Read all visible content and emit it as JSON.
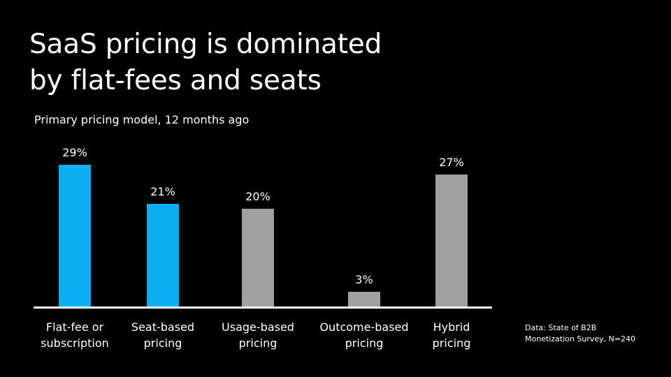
{
  "title_lines": [
    "SaaS pricing is dominated",
    "by flat-fees and seats"
  ],
  "subtitle": "Primary pricing model, 12 months ago",
  "source_lines": [
    "Data: State of B2B",
    "Monetization Survey, N=240"
  ],
  "colors": {
    "background": "#000000",
    "highlight": "#0aaef2",
    "muted": "#a0a0a0",
    "text": "#ffffff",
    "axis": "#ffffff"
  },
  "chart_data": {
    "type": "bar",
    "categories": [
      [
        "Flat-fee or",
        "subscription"
      ],
      [
        "Seat-based",
        "pricing"
      ],
      [
        "Usage-based",
        "pricing"
      ],
      [
        "Outcome-based",
        "pricing"
      ],
      [
        "Hybrid",
        "pricing"
      ]
    ],
    "values": [
      29,
      21,
      20,
      3,
      27
    ],
    "value_labels": [
      "29%",
      "21%",
      "20%",
      "3%",
      "27%"
    ],
    "highlighted": [
      true,
      true,
      false,
      false,
      false
    ],
    "ylim": [
      0,
      30
    ],
    "grid": false,
    "legend": "none",
    "xlabel": "",
    "ylabel": ""
  }
}
